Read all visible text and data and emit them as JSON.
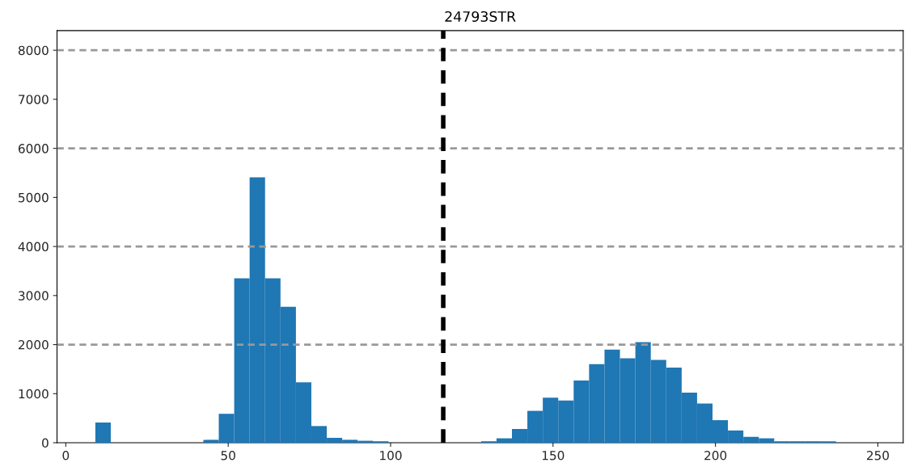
{
  "chart_data": {
    "type": "histogram",
    "title": "24793STR",
    "color": "#1f77b4",
    "bins": [
      9.1,
      13.85,
      18.6,
      23.35,
      28.1,
      32.85,
      37.6,
      42.35,
      47.1,
      51.85,
      56.6,
      61.35,
      66.1,
      70.85,
      75.6,
      80.35,
      85.1,
      89.85,
      94.6,
      99.35,
      104.1,
      108.85,
      113.6,
      118.35,
      123.1,
      127.85,
      132.6,
      137.35,
      142.1,
      146.85,
      151.6,
      156.35,
      161.1,
      165.85,
      170.6,
      175.35,
      180.1,
      184.85,
      189.6,
      194.35,
      199.1,
      203.85,
      208.6,
      213.35,
      218.1,
      222.85,
      227.6,
      232.35,
      237.1
    ],
    "values": [
      410,
      0,
      0,
      0,
      0,
      0,
      0,
      60,
      590,
      3350,
      5410,
      3350,
      2770,
      1230,
      340,
      100,
      60,
      40,
      30,
      0,
      0,
      0,
      0,
      0,
      0,
      30,
      90,
      280,
      650,
      920,
      860,
      1270,
      1600,
      1900,
      1720,
      2050,
      1690,
      1530,
      1020,
      800,
      460,
      250,
      120,
      90,
      30,
      30,
      30,
      30
    ],
    "xlim": [
      -2.7,
      257.8
    ],
    "ylim": [
      0,
      8400
    ],
    "xticks": [
      0,
      50,
      100,
      150,
      200,
      250
    ],
    "yticks": [
      0,
      1000,
      2000,
      3000,
      4000,
      5000,
      6000,
      7000,
      8000
    ],
    "grid": false,
    "ref_lines": [
      {
        "axis": "y",
        "value": 2000,
        "color": "#999999",
        "line_style": "dashed"
      },
      {
        "axis": "y",
        "value": 4000,
        "color": "#999999",
        "line_style": "dashed"
      },
      {
        "axis": "y",
        "value": 6000,
        "color": "#999999",
        "line_style": "dashed"
      },
      {
        "axis": "y",
        "value": 8000,
        "color": "#999999",
        "line_style": "dashed"
      },
      {
        "axis": "x",
        "value": 116.2,
        "color": "#000000",
        "line_style": "dashed"
      }
    ]
  }
}
